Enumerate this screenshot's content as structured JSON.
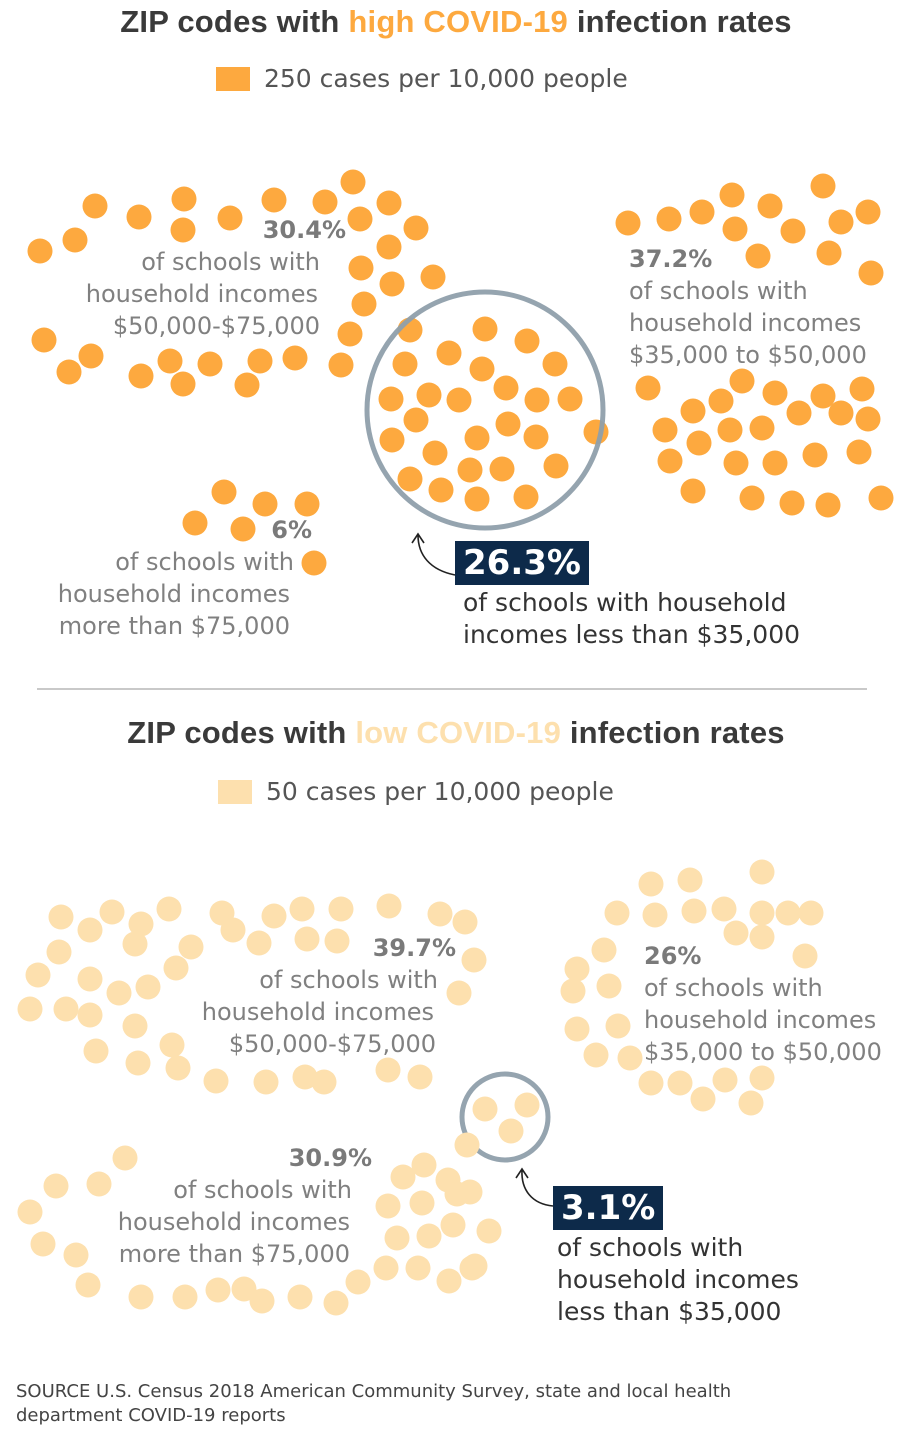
{
  "colors": {
    "high": "#fda93f",
    "low": "#fde0ae",
    "ring": "#8f9fab",
    "callout_bg": "#0d2a4a",
    "title_text": "#3a3a3a",
    "label_text": "#808080"
  },
  "high_section": {
    "title_pre": "ZIP codes with ",
    "title_highlight": "high COVID-19",
    "title_post": " infection rates",
    "legend": "250 cases per 10,000 people",
    "groups": [
      {
        "pct": "30.4%",
        "lines": [
          "of schools with",
          "household incomes",
          "$50,000-$75,000"
        ]
      },
      {
        "pct": "37.2%",
        "lines": [
          "of schools with",
          "household incomes",
          "$35,000 to $50,000"
        ]
      },
      {
        "pct": "6%",
        "lines": [
          "of schools with",
          "household incomes",
          "more than $75,000"
        ]
      }
    ],
    "callout": {
      "pct": "26.3%",
      "lines": [
        "of schools with household",
        "incomes less than $35,000"
      ]
    }
  },
  "low_section": {
    "title_pre": "ZIP codes with ",
    "title_highlight": "low COVID-19",
    "title_post": " infection rates",
    "legend": "50 cases per 10,000 people",
    "groups": [
      {
        "pct": "39.7%",
        "lines": [
          "of schools with",
          "household incomes",
          "$50,000-$75,000"
        ]
      },
      {
        "pct": "26%",
        "lines": [
          "of schools with",
          "household incomes",
          "$35,000 to $50,000"
        ]
      },
      {
        "pct": "30.9%",
        "lines": [
          "of schools with",
          "household incomes",
          "more than $75,000"
        ]
      }
    ],
    "callout": {
      "pct": "3.1%",
      "lines": [
        "of schools with",
        "household incomes",
        "less than $35,000"
      ]
    }
  },
  "source": {
    "line1": "SOURCE U.S. Census 2018 American Community Survey, state and local health",
    "line2": "department COVID-19 reports"
  },
  "chart_data": {
    "type": "table",
    "title": "Share of schools by household income in ZIP codes with high vs low COVID-19 infection rates",
    "unit": "% of schools",
    "categories": [
      "Less than $35,000",
      "$35,000 to $50,000",
      "$50,000-$75,000",
      "More than $75,000"
    ],
    "series": [
      {
        "name": "High COVID-19 infection rates (250 cases per 10,000 people)",
        "values": [
          26.3,
          37.2,
          30.4,
          6
        ]
      },
      {
        "name": "Low COVID-19 infection rates (50 cases per 10,000 people)",
        "values": [
          3.1,
          26,
          39.7,
          30.9
        ]
      }
    ]
  }
}
